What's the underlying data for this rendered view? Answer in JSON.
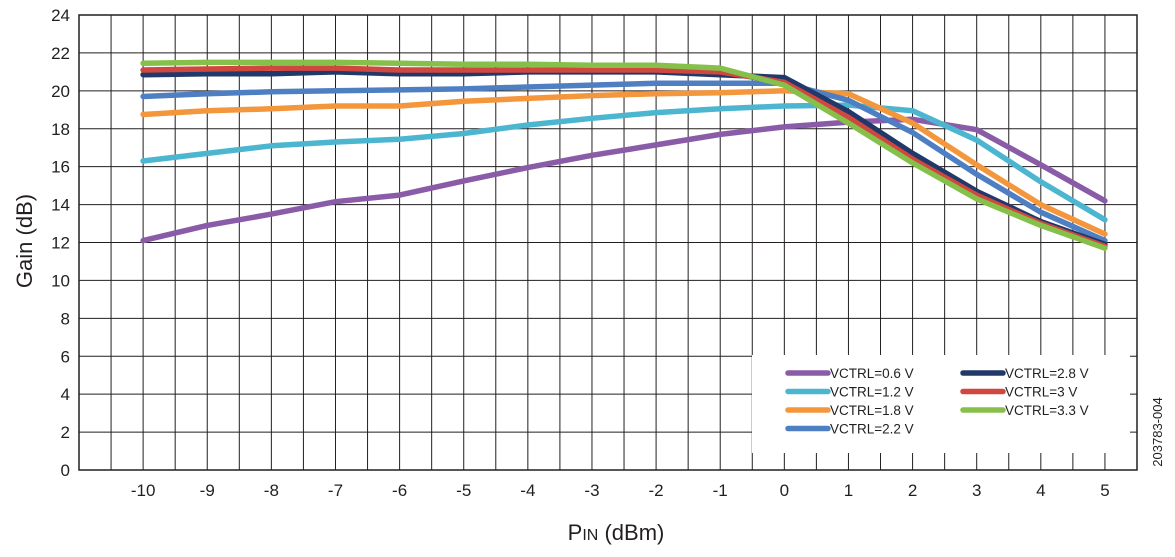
{
  "figure_id": "203783-004",
  "chart_data": {
    "type": "line",
    "title": "",
    "xlabel": "PIN (dBm)",
    "xlabel_main": "P",
    "xlabel_sub": "IN",
    "xlabel_unit": " (dBm)",
    "ylabel": "Gain (dB)",
    "xlim": [
      -11,
      5.5
    ],
    "ylim": [
      0,
      24
    ],
    "x_ticks": [
      -10,
      -9,
      -8,
      -7,
      -6,
      -5,
      -4,
      -3,
      -2,
      -1,
      0,
      1,
      2,
      3,
      4,
      5
    ],
    "y_ticks": [
      0,
      2,
      4,
      6,
      8,
      10,
      12,
      14,
      16,
      18,
      20,
      22,
      24
    ],
    "x": [
      -10,
      -9,
      -8,
      -7,
      -6,
      -5,
      -4,
      -3,
      -2,
      -1,
      0,
      1,
      2,
      3,
      4,
      5
    ],
    "grid": true,
    "legend_position": "bottom-right",
    "series": [
      {
        "name": "VCTRL=0.6 V",
        "color": "#8a5ca8",
        "values": [
          12.1,
          12.9,
          13.5,
          14.15,
          14.5,
          15.25,
          15.95,
          16.6,
          17.15,
          17.7,
          18.1,
          18.35,
          18.5,
          17.95,
          16.1,
          14.2
        ]
      },
      {
        "name": "VCTRL=1.2 V",
        "color": "#4cb6d0",
        "values": [
          16.3,
          16.7,
          17.1,
          17.3,
          17.45,
          17.75,
          18.2,
          18.55,
          18.85,
          19.05,
          19.2,
          19.25,
          18.95,
          17.4,
          15.2,
          13.2
        ]
      },
      {
        "name": "VCTRL=1.8 V",
        "color": "#f4963c",
        "values": [
          18.75,
          18.95,
          19.05,
          19.2,
          19.2,
          19.45,
          19.6,
          19.75,
          19.85,
          19.9,
          20.0,
          19.85,
          18.3,
          16.1,
          14.0,
          12.45
        ]
      },
      {
        "name": "VCTRL=2.2 V",
        "color": "#4f7fc3",
        "values": [
          19.7,
          19.85,
          19.95,
          20.0,
          20.05,
          20.1,
          20.2,
          20.3,
          20.4,
          20.4,
          20.4,
          19.5,
          17.8,
          15.6,
          13.6,
          12.1
        ]
      },
      {
        "name": "VCTRL=2.8 V",
        "color": "#20386a",
        "values": [
          20.85,
          20.9,
          20.9,
          21.0,
          20.9,
          20.9,
          21.0,
          21.0,
          21.0,
          20.85,
          20.7,
          18.9,
          16.7,
          14.7,
          13.1,
          11.9
        ]
      },
      {
        "name": "VCTRL=3 V",
        "color": "#d0473f",
        "values": [
          21.1,
          21.15,
          21.2,
          21.2,
          21.1,
          21.1,
          21.1,
          21.1,
          21.1,
          21.0,
          20.45,
          18.6,
          16.4,
          14.5,
          13.0,
          11.8
        ]
      },
      {
        "name": "VCTRL=3.3 V",
        "color": "#86bf4a",
        "values": [
          21.45,
          21.5,
          21.5,
          21.5,
          21.45,
          21.4,
          21.4,
          21.35,
          21.35,
          21.2,
          20.3,
          18.3,
          16.2,
          14.3,
          12.9,
          11.7
        ]
      }
    ],
    "legend_order": [
      0,
      1,
      2,
      3,
      4,
      5,
      6
    ]
  }
}
